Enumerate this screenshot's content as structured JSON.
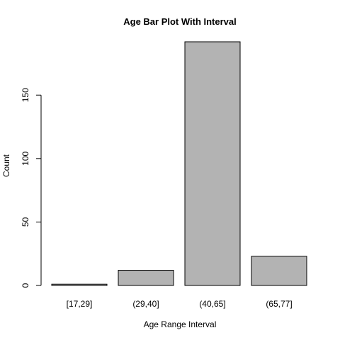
{
  "chart_data": {
    "type": "bar",
    "title": "Age Bar Plot With Interval",
    "xlabel": "Age Range Interval",
    "ylabel": "Count",
    "categories": [
      "[17,29]",
      "(29,40]",
      "(40,65]",
      "(65,77]"
    ],
    "values": [
      1,
      12,
      192,
      23
    ],
    "ylim": [
      0,
      192
    ],
    "yticks": [
      0,
      50,
      100,
      150
    ],
    "bar_color": "#b3b3b3",
    "grid": false,
    "legend": "none"
  }
}
